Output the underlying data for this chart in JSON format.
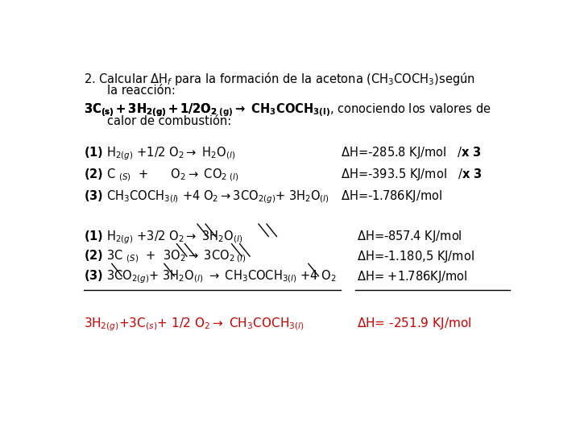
{
  "bg_color": "#ffffff",
  "text_color": "#000000",
  "red_color": "#cc0000",
  "figsize": [
    7.2,
    5.4
  ],
  "dpi": 100,
  "fs": 10.5,
  "fs_red": 11.0
}
